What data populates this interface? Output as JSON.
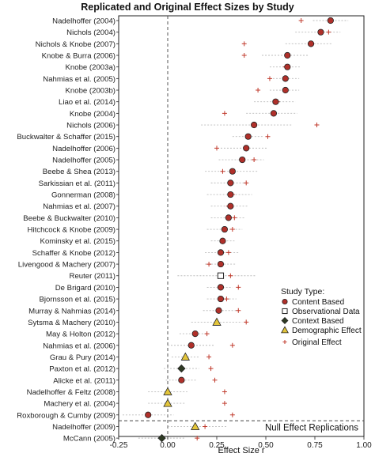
{
  "chart_data": {
    "type": "scatter",
    "title": "Replicated and Original Effect Sizes by Study",
    "xlabel": "Effect Size r",
    "ylabel": "",
    "xlim": [
      -0.25,
      1.0
    ],
    "xticks": [
      "-0.25",
      "0.00",
      "0.25",
      "0.50",
      "0.75",
      "1.00"
    ],
    "xtick_values": [
      -0.25,
      0.0,
      0.25,
      0.5,
      0.75,
      1.0
    ],
    "grid": false,
    "reference_line_x": 0,
    "legend_title": "Study Type:",
    "legend": [
      {
        "key": "content",
        "label": "Content Based",
        "marker": "circle",
        "color": "#b0302a"
      },
      {
        "key": "observational",
        "label": "Observational Data",
        "marker": "square",
        "color": "#ffffff"
      },
      {
        "key": "context",
        "label": "Context Based",
        "marker": "diamond",
        "color": "#2e3a24"
      },
      {
        "key": "demographic",
        "label": "Demographic Effect",
        "marker": "triangle",
        "color": "#e3c53a"
      },
      {
        "key": "original",
        "label": "Original Effect",
        "marker": "plus",
        "color": "#c0392b"
      }
    ],
    "null_label": "Null Effect Replications",
    "studies": [
      {
        "study": "Nadelhoffer (2004)",
        "type": "content",
        "replicated": 0.83,
        "ci": [
          0.74,
          0.92
        ],
        "original": 0.68
      },
      {
        "study": "Nichols (2004)",
        "type": "content",
        "replicated": 0.78,
        "ci": [
          0.65,
          0.88
        ],
        "original": 0.82
      },
      {
        "study": "Nichols & Knobe (2007)",
        "type": "content",
        "replicated": 0.73,
        "ci": [
          0.6,
          0.84
        ],
        "original": 0.39
      },
      {
        "study": "Knobe & Burra (2006)",
        "type": "content",
        "replicated": 0.61,
        "ci": [
          0.48,
          0.72
        ],
        "original": 0.39
      },
      {
        "study": "Knobe (2003a)",
        "type": "content",
        "replicated": 0.61,
        "ci": [
          0.52,
          0.68
        ],
        "original": 0.6
      },
      {
        "study": "Nahmias et al. (2005)",
        "type": "content",
        "replicated": 0.6,
        "ci": [
          0.52,
          0.67
        ],
        "original": 0.52
      },
      {
        "study": "Knobe (2003b)",
        "type": "content",
        "replicated": 0.6,
        "ci": [
          0.52,
          0.67
        ],
        "original": 0.46
      },
      {
        "study": "Liao et al. (2014)",
        "type": "content",
        "replicated": 0.55,
        "ci": [
          0.44,
          0.65
        ],
        "original": 0.56
      },
      {
        "study": "Knobe (2004)",
        "type": "content",
        "replicated": 0.54,
        "ci": [
          0.4,
          0.66
        ],
        "original": 0.29
      },
      {
        "study": "Nichols (2006)",
        "type": "content",
        "replicated": 0.44,
        "ci": [
          0.17,
          0.63
        ],
        "original": 0.76
      },
      {
        "study": "Buckwalter & Schaffer (2015)",
        "type": "content",
        "replicated": 0.41,
        "ci": [
          0.33,
          0.49
        ],
        "original": 0.51
      },
      {
        "study": "Nadelhoffer (2006)",
        "type": "content",
        "replicated": 0.4,
        "ci": [
          0.27,
          0.51
        ],
        "original": 0.25
      },
      {
        "study": "Nadelhoffer (2005)",
        "type": "content",
        "replicated": 0.38,
        "ci": [
          0.26,
          0.49
        ],
        "original": 0.44
      },
      {
        "study": "Beebe & Shea (2013)",
        "type": "content",
        "replicated": 0.33,
        "ci": [
          0.19,
          0.46
        ],
        "original": 0.28
      },
      {
        "study": "Sarkissian et al. (2011)",
        "type": "content",
        "replicated": 0.32,
        "ci": [
          0.22,
          0.41
        ],
        "original": 0.4
      },
      {
        "study": "Gonnerman (2008)",
        "type": "content",
        "replicated": 0.32,
        "ci": [
          0.2,
          0.43
        ],
        "original": 0.33
      },
      {
        "study": "Nahmias et al. (2007)",
        "type": "content",
        "replicated": 0.32,
        "ci": [
          0.22,
          0.41
        ],
        "original": 0.31
      },
      {
        "study": "Beebe & Buckwalter (2010)",
        "type": "content",
        "replicated": 0.31,
        "ci": [
          0.22,
          0.39
        ],
        "original": 0.34
      },
      {
        "study": "Hitchcock & Knobe (2009)",
        "type": "content",
        "replicated": 0.29,
        "ci": [
          0.2,
          0.38
        ],
        "original": 0.33
      },
      {
        "study": "Kominsky et al. (2015)",
        "type": "content",
        "replicated": 0.28,
        "ci": [
          0.22,
          0.34
        ],
        "original": 0.28
      },
      {
        "study": "Schaffer & Knobe (2012)",
        "type": "content",
        "replicated": 0.27,
        "ci": [
          0.19,
          0.36
        ],
        "original": 0.31
      },
      {
        "study": "Livengood & Machery (2007)",
        "type": "content",
        "replicated": 0.27,
        "ci": [
          0.19,
          0.35
        ],
        "original": 0.21
      },
      {
        "study": "Reuter (2011)",
        "type": "observational",
        "replicated": 0.27,
        "ci": [
          0.05,
          0.45
        ],
        "original": 0.32
      },
      {
        "study": "De Brigard (2010)",
        "type": "content",
        "replicated": 0.27,
        "ci": [
          0.2,
          0.33
        ],
        "original": 0.36
      },
      {
        "study": "Bjornsson et al. (2015)",
        "type": "content",
        "replicated": 0.27,
        "ci": [
          0.2,
          0.35
        ],
        "original": 0.3
      },
      {
        "study": "Murray & Nahmias (2014)",
        "type": "content",
        "replicated": 0.26,
        "ci": [
          0.18,
          0.35
        ],
        "original": 0.36
      },
      {
        "study": "Sytsma & Machery (2010)",
        "type": "demographic",
        "replicated": 0.25,
        "ci": [
          0.12,
          0.38
        ],
        "original": 0.4
      },
      {
        "study": "May & Holton (2012)",
        "type": "content",
        "replicated": 0.14,
        "ci": [
          0.06,
          0.21
        ],
        "original": 0.2
      },
      {
        "study": "Nahmias et al. (2006)",
        "type": "content",
        "replicated": 0.12,
        "ci": [
          0.0,
          0.24
        ],
        "original": 0.33
      },
      {
        "study": "Grau & Pury (2014)",
        "type": "demographic",
        "replicated": 0.09,
        "ci": [
          0.02,
          0.16
        ],
        "original": 0.21
      },
      {
        "study": "Paxton et al. (2012)",
        "type": "context",
        "replicated": 0.07,
        "ci": [
          -0.02,
          0.16
        ],
        "original": 0.22
      },
      {
        "study": "Alicke et al. (2011)",
        "type": "content",
        "replicated": 0.07,
        "ci": [
          -0.01,
          0.15
        ],
        "original": 0.24
      },
      {
        "study": "Nadelhoffer & Feltz (2008)",
        "type": "demographic",
        "replicated": 0.0,
        "ci": [
          -0.1,
          0.1
        ],
        "original": 0.29
      },
      {
        "study": "Machery et al. (2004)",
        "type": "demographic",
        "replicated": 0.0,
        "ci": [
          -0.1,
          0.09
        ],
        "original": 0.29
      },
      {
        "study": "Roxborough & Cumby (2009)",
        "type": "content",
        "replicated": -0.1,
        "ci": [
          -0.23,
          0.03
        ],
        "original": 0.33
      },
      {
        "study": "Nadelhoffer (2009)",
        "type": "demographic",
        "replicated": 0.14,
        "ci": [
          0.0,
          0.3
        ],
        "original": 0.19
      },
      {
        "study": "McCann (2005)",
        "type": "context",
        "replicated": -0.03,
        "ci": [
          -0.15,
          0.09
        ],
        "original": 0.15
      }
    ],
    "null_start_index": 35
  }
}
